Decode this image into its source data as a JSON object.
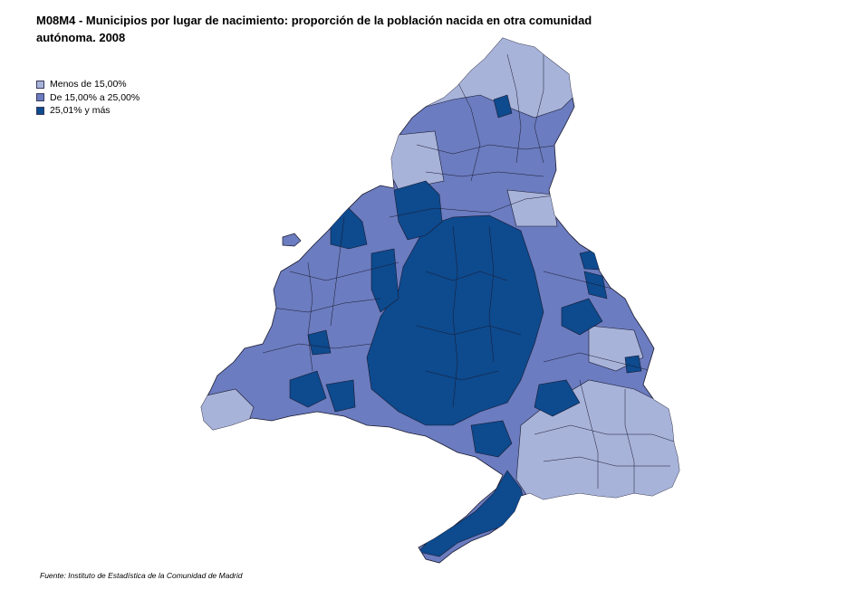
{
  "title": "M08M4 - Municipios por lugar de nacimiento: proporción de la población nacida en otra comunidad autónoma. 2008",
  "legend": [
    {
      "label": "Menos de 15,00%",
      "color": "#a8b3da"
    },
    {
      "label": "De 15,00% a 25,00%",
      "color": "#6b7cc0"
    },
    {
      "label": "25,01%  y más",
      "color": "#0d4a8e"
    }
  ],
  "source": "Fuente: Instituto de Estadística de la Comunidad de Madrid"
}
